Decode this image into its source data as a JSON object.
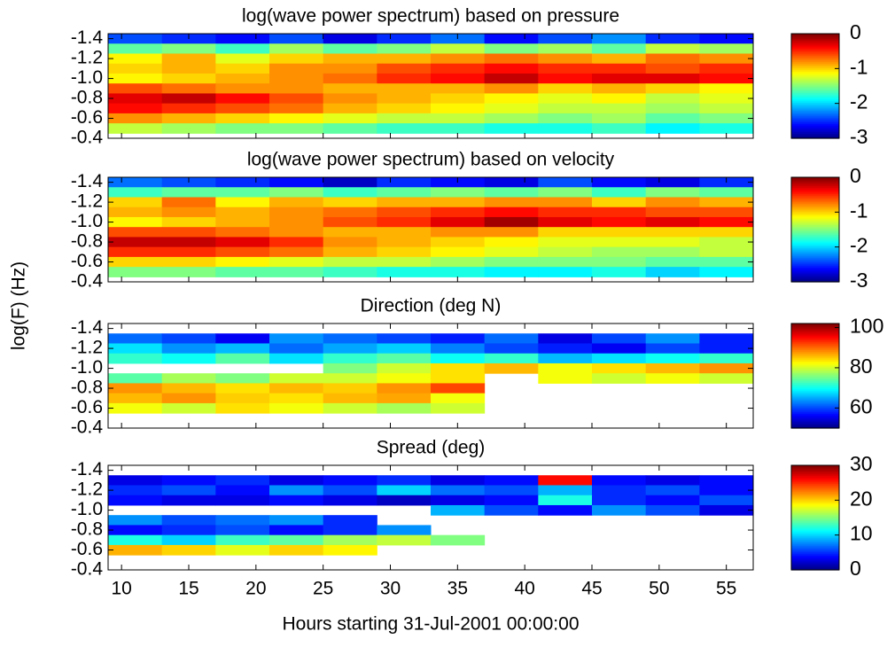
{
  "chart_data": [
    {
      "type": "heatmap",
      "title": "log(wave power spectrum) based on pressure",
      "ylabel": "log(F) (Hz)",
      "x": [
        11,
        15,
        19,
        23,
        27,
        31,
        35,
        39,
        43,
        47,
        51,
        55
      ],
      "y": [
        -1.4,
        -1.3,
        -1.2,
        -1.1,
        -1,
        -0.9,
        -0.8,
        -0.7,
        -0.6,
        -0.5
      ],
      "values": [
        [
          -2.4,
          -2.5,
          -2.6,
          -2.4,
          -2.7,
          -2.5,
          -2.3,
          -2.6,
          -2.4,
          -2.2,
          -2.5,
          -2.6
        ],
        [
          -1.6,
          -1.5,
          -1.7,
          -1.4,
          -1.6,
          -1.5,
          -1.3,
          -1.5,
          -1.4,
          -1.6,
          -1.3,
          -1.4
        ],
        [
          -1.1,
          -0.9,
          -1.2,
          -1.0,
          -0.9,
          -0.9,
          -0.8,
          -0.7,
          -0.8,
          -0.9,
          -0.7,
          -0.8
        ],
        [
          -1.0,
          -0.9,
          -1.0,
          -0.8,
          -0.8,
          -0.6,
          -0.5,
          -0.4,
          -0.5,
          -0.5,
          -0.6,
          -0.5
        ],
        [
          -1.1,
          -1.0,
          -0.9,
          -0.8,
          -0.7,
          -0.5,
          -0.4,
          -0.2,
          -0.4,
          -0.3,
          -0.3,
          -0.4
        ],
        [
          -0.6,
          -0.7,
          -0.8,
          -0.8,
          -0.9,
          -0.9,
          -0.9,
          -0.8,
          -1.0,
          -0.9,
          -1.0,
          -1.1
        ],
        [
          -0.3,
          -0.2,
          -0.4,
          -0.6,
          -0.8,
          -0.9,
          -1.0,
          -1.1,
          -1.2,
          -1.1,
          -1.3,
          -1.2
        ],
        [
          -0.4,
          -0.5,
          -0.6,
          -0.7,
          -0.9,
          -1.0,
          -1.1,
          -1.2,
          -1.3,
          -1.3,
          -1.4,
          -1.3
        ],
        [
          -0.8,
          -0.9,
          -1.0,
          -1.1,
          -1.2,
          -1.3,
          -1.3,
          -1.4,
          -1.5,
          -1.4,
          -1.6,
          -1.5
        ],
        [
          -1.3,
          -1.4,
          -1.5,
          -1.5,
          -1.6,
          -1.7,
          -1.7,
          -1.8,
          -1.8,
          -1.7,
          -1.9,
          -1.8
        ]
      ],
      "xlim": [
        9,
        57
      ],
      "xticks": [
        10,
        15,
        20,
        25,
        30,
        35,
        40,
        45,
        50,
        55
      ],
      "ylim": [
        -1.45,
        -0.4
      ],
      "yticks": [
        -1.4,
        -1.2,
        {
          "value": -1,
          "label": "-1.0"
        },
        -0.8,
        -0.6,
        -0.4
      ],
      "zlim": [
        -3,
        0
      ],
      "zticks": [
        -3,
        -2,
        -1,
        0
      ]
    },
    {
      "type": "heatmap",
      "title": "log(wave power spectrum) based on velocity",
      "x": [
        11,
        15,
        19,
        23,
        27,
        31,
        35,
        39,
        43,
        47,
        51,
        55
      ],
      "y": [
        -1.4,
        -1.3,
        -1.2,
        -1.1,
        -1,
        -0.9,
        -0.8,
        -0.7,
        -0.6,
        -0.5
      ],
      "values": [
        [
          -2.3,
          -2.4,
          -2.5,
          -2.6,
          -2.8,
          -2.5,
          -2.6,
          -2.7,
          -2.4,
          -2.6,
          -2.7,
          -2.5
        ],
        [
          -1.7,
          -1.6,
          -1.6,
          -1.5,
          -1.7,
          -1.6,
          -1.5,
          -1.6,
          -1.5,
          -1.7,
          -1.5,
          -1.6
        ],
        [
          -1.0,
          -0.7,
          -1.1,
          -0.9,
          -1.0,
          -0.9,
          -0.9,
          -0.8,
          -0.8,
          -1.0,
          -0.8,
          -0.9
        ],
        [
          -0.9,
          -0.8,
          -0.9,
          -0.8,
          -0.7,
          -0.6,
          -0.5,
          -0.4,
          -0.5,
          -0.5,
          -0.6,
          -0.6
        ],
        [
          -1.1,
          -1.0,
          -0.9,
          -0.8,
          -0.6,
          -0.5,
          -0.3,
          -0.1,
          -0.3,
          -0.4,
          -0.3,
          -0.4
        ],
        [
          -0.6,
          -0.6,
          -0.7,
          -0.8,
          -0.9,
          -0.9,
          -0.8,
          -0.8,
          -1.0,
          -1.0,
          -1.0,
          -1.0
        ],
        [
          -0.2,
          -0.2,
          -0.3,
          -0.5,
          -0.8,
          -0.9,
          -1.0,
          -1.1,
          -1.2,
          -1.2,
          -1.2,
          -1.3
        ],
        [
          -0.5,
          -0.5,
          -0.6,
          -0.7,
          -0.9,
          -1.0,
          -1.1,
          -1.2,
          -1.3,
          -1.4,
          -1.4,
          -1.3
        ],
        [
          -1.0,
          -1.0,
          -1.1,
          -1.2,
          -1.3,
          -1.3,
          -1.4,
          -1.5,
          -1.5,
          -1.5,
          -1.6,
          -1.6
        ],
        [
          -1.5,
          -1.5,
          -1.6,
          -1.6,
          -1.7,
          -1.8,
          -1.8,
          -1.9,
          -1.9,
          -1.8,
          -2.0,
          -1.9
        ]
      ],
      "xlim": [
        9,
        57
      ],
      "xticks": [
        10,
        15,
        20,
        25,
        30,
        35,
        40,
        45,
        50,
        55
      ],
      "ylim": [
        -1.45,
        -0.4
      ],
      "yticks": [
        -1.4,
        -1.2,
        {
          "value": -1,
          "label": "-1.0"
        },
        -0.8,
        -0.6,
        -0.4
      ],
      "zlim": [
        -3,
        0
      ],
      "zticks": [
        -3,
        -2,
        -1,
        0
      ]
    },
    {
      "type": "heatmap",
      "title": "Direction (deg N)",
      "x": [
        11,
        15,
        19,
        23,
        27,
        31,
        35,
        39,
        43,
        47,
        51,
        55
      ],
      "y": [
        -1.4,
        -1.3,
        -1.2,
        -1.1,
        -1,
        -0.9,
        -0.8,
        -0.7,
        -0.6,
        -0.5
      ],
      "values": [
        [
          null,
          null,
          null,
          null,
          null,
          null,
          null,
          null,
          null,
          null,
          null,
          null
        ],
        [
          62,
          60,
          56,
          64,
          62,
          60,
          58,
          62,
          55,
          60,
          64,
          58
        ],
        [
          68,
          64,
          66,
          62,
          65,
          67,
          63,
          60,
          58,
          56,
          60,
          58
        ],
        [
          72,
          70,
          74,
          68,
          72,
          74,
          70,
          72,
          66,
          68,
          70,
          72
        ],
        [
          null,
          null,
          null,
          null,
          76,
          80,
          84,
          86,
          82,
          84,
          86,
          88
        ],
        [
          74,
          78,
          76,
          80,
          80,
          82,
          84,
          null,
          82,
          80,
          82,
          80
        ],
        [
          88,
          86,
          84,
          86,
          85,
          88,
          92,
          null,
          null,
          null,
          null,
          null
        ],
        [
          86,
          88,
          85,
          84,
          86,
          87,
          82,
          null,
          null,
          null,
          null,
          null
        ],
        [
          82,
          80,
          84,
          82,
          80,
          78,
          80,
          null,
          null,
          null,
          null,
          null
        ],
        [
          null,
          null,
          null,
          null,
          null,
          null,
          null,
          null,
          null,
          null,
          null,
          null
        ]
      ],
      "xlim": [
        9,
        57
      ],
      "xticks": [
        10,
        15,
        20,
        25,
        30,
        35,
        40,
        45,
        50,
        55
      ],
      "ylim": [
        -1.45,
        -0.4
      ],
      "yticks": [
        -1.4,
        -1.2,
        {
          "value": -1,
          "label": "-1.0"
        },
        -0.8,
        -0.6,
        -0.4
      ],
      "zlim": [
        50,
        102
      ],
      "zticks": [
        60,
        80,
        100
      ]
    },
    {
      "type": "heatmap",
      "title": "Spread (deg)",
      "xlabel": "Hours starting 31-Jul-2001 00:00:00",
      "x": [
        11,
        15,
        19,
        23,
        27,
        31,
        35,
        39,
        43,
        47,
        51,
        55
      ],
      "y": [
        -1.4,
        -1.3,
        -1.2,
        -1.1,
        -1,
        -0.9,
        -0.8,
        -0.7,
        -0.6,
        -0.5
      ],
      "values": [
        [
          null,
          null,
          null,
          null,
          null,
          null,
          null,
          null,
          null,
          null,
          null,
          null
        ],
        [
          3,
          4,
          5,
          3,
          4,
          5,
          3,
          4,
          26,
          4,
          3,
          4
        ],
        [
          5,
          6,
          4,
          8,
          6,
          10,
          7,
          6,
          9,
          5,
          6,
          4
        ],
        [
          4,
          3,
          3,
          4,
          3,
          2,
          3,
          4,
          12,
          5,
          4,
          6
        ],
        [
          null,
          null,
          null,
          null,
          null,
          null,
          9,
          6,
          4,
          8,
          6,
          3
        ],
        [
          8,
          6,
          7,
          8,
          5,
          null,
          null,
          null,
          null,
          null,
          null,
          null
        ],
        [
          4,
          5,
          6,
          4,
          5,
          8,
          null,
          null,
          null,
          null,
          null,
          null
        ],
        [
          12,
          10,
          13,
          14,
          16,
          17,
          15,
          null,
          null,
          null,
          null,
          null
        ],
        [
          21,
          20,
          18,
          20,
          19,
          null,
          null,
          null,
          null,
          null,
          null,
          null
        ],
        [
          null,
          null,
          null,
          null,
          null,
          null,
          null,
          null,
          null,
          null,
          null,
          null
        ]
      ],
      "xlim": [
        9,
        57
      ],
      "xticks": [
        10,
        15,
        20,
        25,
        30,
        35,
        40,
        45,
        50,
        55
      ],
      "ylim": [
        -1.45,
        -0.4
      ],
      "yticks": [
        -1.4,
        -1.2,
        {
          "value": -1,
          "label": "-1.0"
        },
        -0.8,
        -0.6,
        -0.4
      ],
      "zlim": [
        0,
        30
      ],
      "zticks": [
        0,
        10,
        20,
        30
      ]
    }
  ]
}
